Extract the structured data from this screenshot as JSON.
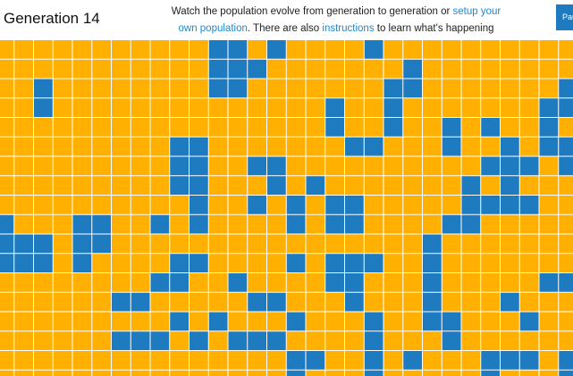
{
  "header": {
    "title": "Generation 14",
    "intro": {
      "text1": "Watch the population evolve from generation to generation or ",
      "link1": "setup your own population",
      "text2": ". There are also ",
      "link2": "instructions",
      "text3": " to learn what's happening"
    },
    "button": "Pause"
  },
  "grid": {
    "colors": {
      "alive": "#1f7bbf",
      "dead": "#ffb000"
    },
    "cells": [
      [
        0,
        0,
        0,
        0,
        0,
        0,
        0,
        0,
        0,
        0,
        0,
        1,
        1,
        0,
        1,
        0,
        0,
        0,
        0,
        1,
        0,
        0,
        0,
        0,
        0,
        0,
        0,
        0,
        0,
        0
      ],
      [
        0,
        0,
        0,
        0,
        0,
        0,
        0,
        0,
        0,
        0,
        0,
        1,
        1,
        1,
        0,
        0,
        0,
        0,
        0,
        0,
        0,
        1,
        0,
        0,
        0,
        0,
        0,
        0,
        0,
        0
      ],
      [
        0,
        0,
        1,
        0,
        0,
        0,
        0,
        0,
        0,
        0,
        0,
        1,
        1,
        0,
        0,
        0,
        0,
        0,
        0,
        0,
        1,
        1,
        0,
        0,
        0,
        0,
        0,
        0,
        0,
        1
      ],
      [
        0,
        0,
        1,
        0,
        0,
        0,
        0,
        0,
        0,
        0,
        0,
        0,
        0,
        0,
        0,
        0,
        0,
        1,
        0,
        0,
        1,
        0,
        0,
        0,
        0,
        0,
        0,
        0,
        1,
        1
      ],
      [
        0,
        0,
        0,
        0,
        0,
        0,
        0,
        0,
        0,
        0,
        0,
        0,
        0,
        0,
        0,
        0,
        0,
        1,
        0,
        0,
        1,
        0,
        0,
        1,
        0,
        1,
        0,
        0,
        1,
        0
      ],
      [
        0,
        0,
        0,
        0,
        0,
        0,
        0,
        0,
        0,
        1,
        1,
        0,
        0,
        0,
        0,
        0,
        0,
        0,
        1,
        1,
        0,
        0,
        0,
        1,
        0,
        0,
        1,
        0,
        1,
        1
      ],
      [
        0,
        0,
        0,
        0,
        0,
        0,
        0,
        0,
        0,
        1,
        1,
        0,
        0,
        1,
        1,
        0,
        0,
        0,
        0,
        0,
        0,
        0,
        0,
        0,
        0,
        1,
        1,
        1,
        0,
        1
      ],
      [
        0,
        0,
        0,
        0,
        0,
        0,
        0,
        0,
        0,
        1,
        1,
        0,
        0,
        0,
        1,
        0,
        1,
        0,
        0,
        0,
        0,
        0,
        0,
        0,
        1,
        0,
        1,
        0,
        0,
        0
      ],
      [
        0,
        0,
        0,
        0,
        0,
        0,
        0,
        0,
        0,
        0,
        1,
        0,
        0,
        1,
        0,
        1,
        0,
        1,
        1,
        0,
        0,
        0,
        0,
        0,
        1,
        1,
        1,
        1,
        0,
        0
      ],
      [
        1,
        0,
        0,
        0,
        1,
        1,
        0,
        0,
        1,
        0,
        1,
        0,
        0,
        0,
        0,
        1,
        0,
        1,
        1,
        0,
        0,
        0,
        0,
        1,
        1,
        0,
        0,
        0,
        0,
        0
      ],
      [
        1,
        1,
        1,
        0,
        1,
        1,
        0,
        0,
        0,
        0,
        0,
        0,
        0,
        0,
        0,
        0,
        0,
        0,
        0,
        0,
        0,
        0,
        1,
        0,
        0,
        0,
        0,
        0,
        0,
        0
      ],
      [
        1,
        1,
        1,
        0,
        1,
        0,
        0,
        0,
        0,
        1,
        1,
        0,
        0,
        0,
        0,
        1,
        0,
        1,
        1,
        1,
        0,
        0,
        1,
        0,
        0,
        0,
        0,
        0,
        0,
        0
      ],
      [
        0,
        0,
        0,
        0,
        0,
        0,
        0,
        0,
        1,
        1,
        0,
        0,
        1,
        0,
        0,
        0,
        0,
        1,
        1,
        0,
        0,
        0,
        1,
        0,
        0,
        0,
        0,
        0,
        1,
        1
      ],
      [
        0,
        0,
        0,
        0,
        0,
        0,
        1,
        1,
        0,
        0,
        0,
        0,
        0,
        1,
        1,
        0,
        0,
        0,
        1,
        0,
        0,
        0,
        1,
        0,
        0,
        0,
        1,
        0,
        0,
        0
      ],
      [
        0,
        0,
        0,
        0,
        0,
        0,
        0,
        0,
        0,
        1,
        0,
        1,
        0,
        0,
        0,
        1,
        0,
        0,
        0,
        1,
        0,
        0,
        1,
        1,
        0,
        0,
        0,
        1,
        0,
        0
      ],
      [
        0,
        0,
        0,
        0,
        0,
        0,
        1,
        1,
        1,
        0,
        1,
        0,
        1,
        1,
        1,
        0,
        0,
        0,
        0,
        1,
        0,
        0,
        0,
        1,
        0,
        0,
        0,
        0,
        0,
        0
      ],
      [
        0,
        0,
        0,
        0,
        0,
        0,
        0,
        0,
        0,
        0,
        0,
        0,
        0,
        0,
        0,
        1,
        1,
        0,
        0,
        1,
        0,
        1,
        0,
        0,
        0,
        1,
        1,
        1,
        0,
        1
      ],
      [
        0,
        0,
        0,
        0,
        0,
        0,
        0,
        0,
        0,
        0,
        0,
        0,
        0,
        0,
        0,
        1,
        0,
        0,
        0,
        1,
        0,
        0,
        0,
        0,
        0,
        1,
        0,
        0,
        0,
        1
      ]
    ]
  }
}
